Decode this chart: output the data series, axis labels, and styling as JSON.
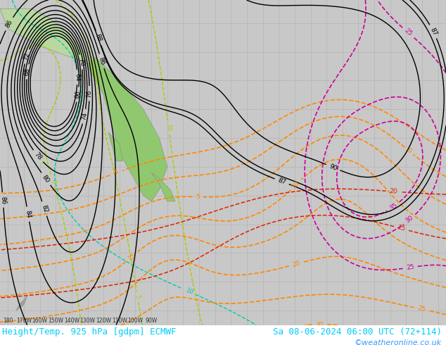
{
  "title_left": "Height/Temp. 925 hPa [gdpm] ECMWF",
  "title_right": "Sa 08-06-2024 06:00 UTC (72+114)",
  "copyright": "©weatheronline.co.uk",
  "title_font_size": 9,
  "copyright_font_size": 8,
  "fig_width": 6.34,
  "fig_height": 4.9,
  "dpi": 100,
  "ocean_color": "#c8c8c8",
  "land_color": "#b8d8a0",
  "land_color2": "#90c870",
  "border_color": "#888888",
  "contour_black_color": "#000000",
  "contour_orange_color": "#ff8800",
  "contour_cyan_color": "#00ccaa",
  "contour_yellow_color": "#aacc00",
  "contour_red_color": "#dd2200",
  "contour_magenta_color": "#cc0099",
  "footer_color": "#001166",
  "footer_text_color": "#00ccff",
  "copyright_color": "#3399ff",
  "grid_color": "#999999",
  "grid_alpha": 0.5
}
